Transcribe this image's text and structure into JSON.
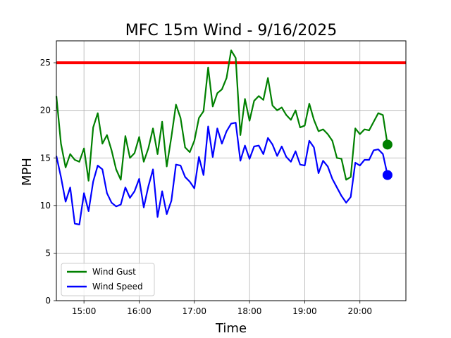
{
  "chart_data": {
    "type": "line",
    "title": "MFC 15m Wind - 9/16/2025",
    "xlabel": "Time",
    "ylabel": "MPH",
    "xlim": [
      "14:30",
      "20:50"
    ],
    "ylim": [
      0,
      27.3
    ],
    "x_ticks": [
      "15:00",
      "16:00",
      "17:00",
      "18:00",
      "19:00",
      "20:00"
    ],
    "y_ticks": [
      0,
      5,
      10,
      15,
      20,
      25
    ],
    "grid": true,
    "legend_position": "lower-left",
    "threshold": {
      "value": 25,
      "color": "#ff0000"
    },
    "x": [
      "14:30",
      "14:35",
      "14:40",
      "14:45",
      "14:50",
      "14:55",
      "15:00",
      "15:05",
      "15:10",
      "15:15",
      "15:20",
      "15:25",
      "15:30",
      "15:35",
      "15:40",
      "15:45",
      "15:50",
      "15:55",
      "16:00",
      "16:05",
      "16:10",
      "16:15",
      "16:20",
      "16:25",
      "16:30",
      "16:35",
      "16:40",
      "16:45",
      "16:50",
      "16:55",
      "17:00",
      "17:05",
      "17:10",
      "17:15",
      "17:20",
      "17:25",
      "17:30",
      "17:35",
      "17:40",
      "17:45",
      "17:50",
      "17:55",
      "18:00",
      "18:05",
      "18:10",
      "18:15",
      "18:20",
      "18:25",
      "18:30",
      "18:35",
      "18:40",
      "18:45",
      "18:50",
      "18:55",
      "19:00",
      "19:05",
      "19:10",
      "19:15",
      "19:20",
      "19:25",
      "19:30",
      "19:35",
      "19:40",
      "19:45",
      "19:50",
      "19:55",
      "20:00",
      "20:05",
      "20:10",
      "20:15",
      "20:20",
      "20:25",
      "20:30"
    ],
    "series": [
      {
        "name": "Wind Gust",
        "color": "#008000",
        "values": [
          21.5,
          16.5,
          14.0,
          15.4,
          14.8,
          14.6,
          16.0,
          12.6,
          18.2,
          19.7,
          16.5,
          17.4,
          15.8,
          13.8,
          12.7,
          17.3,
          15.0,
          15.5,
          17.2,
          14.6,
          16.0,
          18.1,
          15.4,
          18.8,
          14.1,
          17.2,
          20.6,
          19.2,
          16.1,
          15.6,
          16.8,
          19.2,
          19.9,
          24.5,
          20.4,
          21.8,
          22.2,
          23.4,
          26.3,
          25.5,
          17.4,
          21.2,
          18.9,
          21.0,
          21.5,
          21.1,
          23.4,
          20.5,
          20.0,
          20.3,
          19.5,
          19.0,
          20.0,
          18.2,
          18.4,
          20.7,
          19.0,
          17.8,
          18.0,
          17.5,
          16.8,
          15.0,
          14.9,
          12.7,
          13.0,
          18.1,
          17.5,
          18.0,
          17.9,
          18.8,
          19.7,
          19.5,
          16.4
        ]
      },
      {
        "name": "Wind Speed",
        "color": "#0000ff",
        "values": [
          15.2,
          13.0,
          10.4,
          11.9,
          8.1,
          8.0,
          11.3,
          9.4,
          12.5,
          14.2,
          13.8,
          11.3,
          10.3,
          9.9,
          10.1,
          11.9,
          10.8,
          11.5,
          12.8,
          9.8,
          12.0,
          13.8,
          8.8,
          11.5,
          9.1,
          10.5,
          14.3,
          14.2,
          13.0,
          12.5,
          11.8,
          15.1,
          13.2,
          18.3,
          15.1,
          18.1,
          16.5,
          17.8,
          18.6,
          18.7,
          14.7,
          16.3,
          14.9,
          16.2,
          16.3,
          15.4,
          17.1,
          16.4,
          15.2,
          16.2,
          15.1,
          14.6,
          15.7,
          14.3,
          14.2,
          16.8,
          16.1,
          13.4,
          14.7,
          14.1,
          12.8,
          11.9,
          11.0,
          10.3,
          10.9,
          14.5,
          14.2,
          14.8,
          14.8,
          15.8,
          15.9,
          15.4,
          13.2
        ]
      }
    ]
  }
}
